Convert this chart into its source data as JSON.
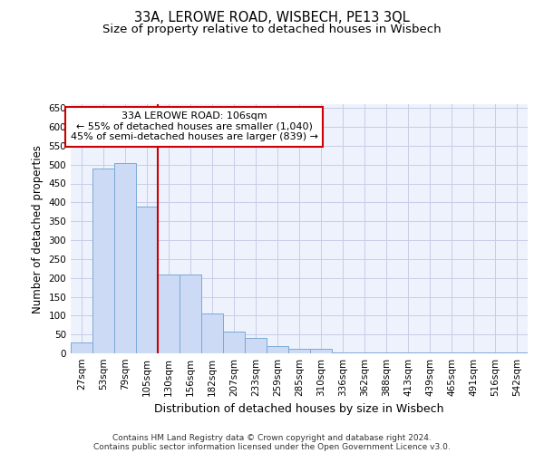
{
  "title1": "33A, LEROWE ROAD, WISBECH, PE13 3QL",
  "title2": "Size of property relative to detached houses in Wisbech",
  "xlabel": "Distribution of detached houses by size in Wisbech",
  "ylabel": "Number of detached properties",
  "categories": [
    "27sqm",
    "53sqm",
    "79sqm",
    "105sqm",
    "130sqm",
    "156sqm",
    "182sqm",
    "207sqm",
    "233sqm",
    "259sqm",
    "285sqm",
    "310sqm",
    "336sqm",
    "362sqm",
    "388sqm",
    "413sqm",
    "439sqm",
    "465sqm",
    "491sqm",
    "516sqm",
    "542sqm"
  ],
  "values": [
    30,
    490,
    503,
    390,
    208,
    208,
    106,
    58,
    40,
    20,
    12,
    11,
    2,
    2,
    2,
    2,
    2,
    2,
    2,
    2,
    2
  ],
  "bar_color": "#ccdaf5",
  "bar_edge_color": "#7aaad8",
  "vline_x_idx": 3,
  "vline_color": "#cc0000",
  "annotation_line1": "33A LEROWE ROAD: 106sqm",
  "annotation_line2": "← 55% of detached houses are smaller (1,040)",
  "annotation_line3": "45% of semi-detached houses are larger (839) →",
  "annotation_box_color": "#ffffff",
  "annotation_box_edge_color": "#cc0000",
  "ylim": [
    0,
    660
  ],
  "yticks": [
    0,
    50,
    100,
    150,
    200,
    250,
    300,
    350,
    400,
    450,
    500,
    550,
    600,
    650
  ],
  "background_color": "#eef2fc",
  "grid_color": "#c8cce8",
  "footer_line1": "Contains HM Land Registry data © Crown copyright and database right 2024.",
  "footer_line2": "Contains public sector information licensed under the Open Government Licence v3.0.",
  "title1_fontsize": 10.5,
  "title2_fontsize": 9.5,
  "xlabel_fontsize": 9,
  "ylabel_fontsize": 8.5,
  "tick_fontsize": 7.5,
  "annotation_fontsize": 8,
  "footer_fontsize": 6.5
}
